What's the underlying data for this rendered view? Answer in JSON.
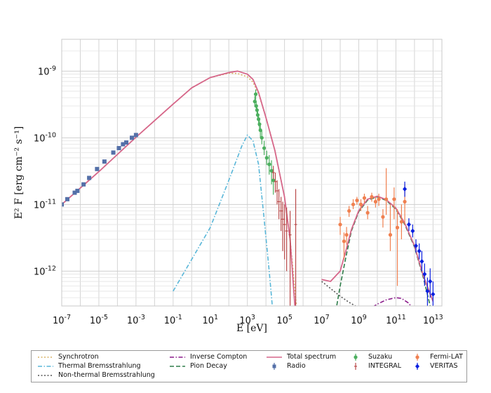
{
  "chart_data": {
    "type": "line",
    "xlabel": "E [eV]",
    "ylabel": "E² F [erg cm⁻² s⁻¹]",
    "xscale": "log",
    "yscale": "log",
    "xlim": [
      1e-07,
      30000000000000.0
    ],
    "ylim": [
      3e-13,
      3e-09
    ],
    "grid": true,
    "legend_position": "bottom",
    "x_ticks": [
      {
        "value": 1e-07,
        "base": "10",
        "exp": "-7"
      },
      {
        "value": 1e-05,
        "base": "10",
        "exp": "-5"
      },
      {
        "value": 0.001,
        "base": "10",
        "exp": "-3"
      },
      {
        "value": 0.1,
        "base": "10",
        "exp": "-1"
      },
      {
        "value": 10.0,
        "base": "10",
        "exp": "1"
      },
      {
        "value": 1000.0,
        "base": "10",
        "exp": "3"
      },
      {
        "value": 100000.0,
        "base": "10",
        "exp": "5"
      },
      {
        "value": 10000000.0,
        "base": "10",
        "exp": "7"
      },
      {
        "value": 1000000000.0,
        "base": "10",
        "exp": "9"
      },
      {
        "value": 100000000000.0,
        "base": "10",
        "exp": "11"
      },
      {
        "value": 10000000000000.0,
        "base": "10",
        "exp": "13"
      }
    ],
    "y_ticks": [
      {
        "value": 1e-12,
        "base": "10",
        "exp": "-12"
      },
      {
        "value": 1e-11,
        "base": "10",
        "exp": "-11"
      },
      {
        "value": 1e-10,
        "base": "10",
        "exp": "-10"
      },
      {
        "value": 1e-09,
        "base": "10",
        "exp": "-9"
      }
    ],
    "model_curves": [
      {
        "name": "Synchrotron",
        "color": "#d8b366",
        "style": "dotted",
        "x": [
          1e-07,
          1e-05,
          0.001,
          0.1,
          1.0,
          10.0,
          100.0,
          300.0,
          1000.0,
          2000.0,
          4000.0,
          10000.0,
          30000.0,
          100000.0,
          200000.0,
          500000.0
        ],
        "y": [
          1e-11,
          3.1e-11,
          1.02e-10,
          3.2e-10,
          5.6e-10,
          8e-10,
          9.3e-10,
          9.2e-10,
          8.2e-10,
          6.8e-10,
          4.6e-10,
          2e-10,
          6.5e-11,
          1.3e-11,
          3e-12,
          2e-13
        ]
      },
      {
        "name": "Thermal Bremsstrahlung",
        "color": "#58b6d8",
        "style": "dashdot",
        "x": [
          0.1,
          1,
          10,
          100,
          500,
          1000.0,
          2000.0,
          4000.0,
          8000.0,
          15000.0,
          25000.0
        ],
        "y": [
          5e-13,
          1.5e-12,
          4.5e-12,
          2.3e-11,
          7.5e-11,
          1.1e-10,
          9e-11,
          4e-11,
          6e-12,
          1e-12,
          2e-13
        ]
      },
      {
        "name": "Non-thermal Bremsstrahlung",
        "color": "#555555",
        "style": "dotted",
        "x": [
          10000000.0,
          30000000.0,
          100000000.0,
          300000000.0,
          1000000000.0,
          3000000000.0,
          7000000000.0
        ],
        "y": [
          7e-13,
          5.5e-13,
          4.2e-13,
          3.4e-13,
          2.8e-13,
          2.4e-13,
          2e-13
        ]
      },
      {
        "name": "Inverse Compton",
        "color": "#8a1a8a",
        "style": "dashdot",
        "x": [
          1000000000.0,
          3000000000.0,
          10000000000.0,
          30000000000.0,
          100000000000.0,
          200000000000.0,
          500000000000.0,
          1000000000000.0
        ],
        "y": [
          2e-13,
          2.6e-13,
          3.2e-13,
          3.7e-13,
          4e-13,
          3.9e-13,
          3.3e-13,
          2.5e-13
        ]
      },
      {
        "name": "Pion Decay",
        "color": "#2e7d4a",
        "style": "dashed",
        "x": [
          50000000.0,
          100000000.0,
          200000000.0,
          400000000.0,
          1000000000.0,
          3000000000.0,
          10000000000.0,
          30000000000.0,
          100000000000.0,
          300000000000.0,
          1000000000000.0,
          3000000000000.0,
          10000000000000.0
        ],
        "y": [
          2e-13,
          6e-13,
          1.6e-12,
          4e-12,
          7.8e-12,
          1.16e-11,
          1.3e-11,
          1.15e-11,
          8.5e-12,
          5e-12,
          2.3e-12,
          8e-13,
          2e-13
        ]
      },
      {
        "name": "Total spectrum",
        "color": "#d6668a",
        "style": "solid",
        "x": [
          1e-07,
          1e-05,
          0.001,
          0.1,
          1.0,
          10.0,
          100.0,
          300.0,
          1000.0,
          2000.0,
          4000.0,
          10000.0,
          30000.0,
          100000.0,
          200000.0,
          400000.0
        ],
        "y": [
          1e-11,
          3.1e-11,
          1.02e-10,
          3.2e-10,
          5.6e-10,
          8e-10,
          9.5e-10,
          1e-09,
          9e-10,
          7.5e-10,
          4.8e-10,
          2e-10,
          6.5e-11,
          1.3e-11,
          3e-12,
          2e-13
        ]
      },
      {
        "name": "Total spectrum",
        "color": "#d6668a",
        "style": "solid",
        "x": [
          10000000.0,
          30000000.0,
          100000000.0,
          200000000.0,
          400000000.0,
          1000000000.0,
          3000000000.0,
          10000000000.0,
          30000000000.0,
          100000000000.0,
          300000000000.0,
          1000000000000.0,
          3000000000000.0,
          10000000000000.0
        ],
        "y": [
          7.5e-13,
          7e-13,
          1e-12,
          2e-12,
          4.2e-12,
          8.1e-12,
          1.2e-11,
          1.33e-11,
          1.18e-11,
          8.8e-12,
          5.2e-12,
          2.4e-12,
          8.5e-13,
          3.5e-13
        ]
      }
    ],
    "data_series": [
      {
        "name": "Radio",
        "color": "#5470a8",
        "marker": "square",
        "points": [
          {
            "x": 1e-07,
            "y": 1e-11
          },
          {
            "x": 2e-07,
            "y": 1.2e-11
          },
          {
            "x": 5e-07,
            "y": 1.5e-11
          },
          {
            "x": 7e-07,
            "y": 1.6e-11
          },
          {
            "x": 1.5e-06,
            "y": 2e-11
          },
          {
            "x": 3e-06,
            "y": 2.5e-11
          },
          {
            "x": 8e-06,
            "y": 3.4e-11
          },
          {
            "x": 2e-05,
            "y": 4.4e-11
          },
          {
            "x": 6e-05,
            "y": 6e-11
          },
          {
            "x": 0.00012,
            "y": 7e-11
          },
          {
            "x": 0.0002,
            "y": 8e-11
          },
          {
            "x": 0.0003,
            "y": 8.5e-11
          },
          {
            "x": 0.0006,
            "y": 1e-10
          },
          {
            "x": 0.001,
            "y": 1.1e-10
          }
        ]
      },
      {
        "name": "Suzaku",
        "color": "#4caf5f",
        "marker": "circle",
        "points": [
          {
            "x": 2500.0,
            "y": 3.5e-10,
            "lo": 2.9e-10,
            "hi": 4.2e-10
          },
          {
            "x": 2800.0,
            "y": 4.5e-10,
            "lo": 3.7e-10,
            "hi": 5.3e-10
          },
          {
            "x": 3000.0,
            "y": 3e-10,
            "lo": 2.5e-10,
            "hi": 3.6e-10
          },
          {
            "x": 3300.0,
            "y": 2.6e-10,
            "lo": 2.2e-10,
            "hi": 3.1e-10
          },
          {
            "x": 3600.0,
            "y": 2.2e-10,
            "lo": 1.8e-10,
            "hi": 2.7e-10
          },
          {
            "x": 4000.0,
            "y": 1.9e-10,
            "lo": 1.5e-10,
            "hi": 2.3e-10
          },
          {
            "x": 4500.0,
            "y": 1.6e-10,
            "lo": 1.3e-10,
            "hi": 2e-10
          },
          {
            "x": 5000.0,
            "y": 1.3e-10,
            "lo": 1e-10,
            "hi": 1.6e-10
          },
          {
            "x": 6000.0,
            "y": 1e-10,
            "lo": 8e-11,
            "hi": 1.3e-10
          },
          {
            "x": 8000.0,
            "y": 7e-11,
            "lo": 5.5e-11,
            "hi": 9e-11
          },
          {
            "x": 11000.0,
            "y": 5e-11,
            "lo": 3.9e-11,
            "hi": 6.4e-11
          },
          {
            "x": 15000.0,
            "y": 4e-11,
            "lo": 2.8e-11,
            "hi": 5.5e-11
          },
          {
            "x": 20000.0,
            "y": 3.2e-11,
            "lo": 2e-11,
            "hi": 4.6e-11
          },
          {
            "x": 25000.0,
            "y": 2.3e-11,
            "lo": 1.4e-11,
            "hi": 3.4e-11
          }
        ]
      },
      {
        "name": "INTEGRAL",
        "color": "#b94a4a",
        "marker": "tick",
        "points": [
          {
            "x": 25000.0,
            "y": 3e-11,
            "lo": 2.4e-11,
            "hi": 3.8e-11
          },
          {
            "x": 32000.0,
            "y": 2.2e-11,
            "lo": 1.5e-11,
            "hi": 3e-11
          },
          {
            "x": 40000.0,
            "y": 1.6e-11,
            "lo": 1e-11,
            "hi": 2.3e-11
          },
          {
            "x": 50000.0,
            "y": 1.1e-11,
            "lo": 6e-12,
            "hi": 1.7e-11
          },
          {
            "x": 65000.0,
            "y": 8e-12,
            "lo": 4e-12,
            "hi": 1.3e-11
          },
          {
            "x": 80000.0,
            "y": 6e-12,
            "lo": 2e-12,
            "hi": 1.1e-11
          },
          {
            "x": 100000.0,
            "y": 5e-12,
            "lo": 1.5e-12,
            "hi": 1e-11
          },
          {
            "x": 130000.0,
            "y": 4e-12,
            "lo": 1e-12,
            "hi": 9e-12
          },
          {
            "x": 200000.0,
            "y": 3.5e-12,
            "lo": 3e-13,
            "hi": 8e-12
          },
          {
            "x": 400000.0,
            "y": 5e-12,
            "lo": 3e-13,
            "hi": 1.7e-11
          }
        ]
      },
      {
        "name": "Fermi-LAT",
        "color": "#f08050",
        "marker": "circle",
        "points": [
          {
            "x": 100000000.0,
            "y": 5e-12,
            "lo": 3.5e-12,
            "hi": 6.5e-12
          },
          {
            "x": 160000000.0,
            "y": 2.8e-12,
            "lo": 1.5e-12,
            "hi": 3.8e-12
          },
          {
            "x": 220000000.0,
            "y": 3.5e-12,
            "lo": 2.5e-12,
            "hi": 4.6e-12
          },
          {
            "x": 300000000.0,
            "y": 8e-12,
            "lo": 6.5e-12,
            "hi": 9.5e-12
          },
          {
            "x": 500000000.0,
            "y": 1e-11,
            "lo": 8.5e-12,
            "hi": 1.2e-11
          },
          {
            "x": 800000000.0,
            "y": 1.15e-11,
            "lo": 1e-11,
            "hi": 1.3e-11
          },
          {
            "x": 1300000000.0,
            "y": 1e-11,
            "lo": 8e-12,
            "hi": 1.2e-11
          },
          {
            "x": 2000000000.0,
            "y": 1.25e-11,
            "lo": 1.05e-11,
            "hi": 1.45e-11
          },
          {
            "x": 3000000000.0,
            "y": 7.5e-12,
            "lo": 6e-12,
            "hi": 9.5e-12
          },
          {
            "x": 5000000000.0,
            "y": 1.3e-11,
            "lo": 1.1e-11,
            "hi": 1.5e-11
          },
          {
            "x": 8000000000.0,
            "y": 1.1e-11,
            "lo": 9e-12,
            "hi": 1.3e-11
          },
          {
            "x": 12000000000.0,
            "y": 1.2e-11,
            "lo": 9.5e-12,
            "hi": 1.45e-11
          },
          {
            "x": 20000000000.0,
            "y": 6.5e-12,
            "lo": 4.5e-12,
            "hi": 8.5e-12
          },
          {
            "x": 30000000000.0,
            "y": 1.2e-11,
            "lo": 7e-12,
            "hi": 3.5e-11
          },
          {
            "x": 50000000000.0,
            "y": 3.5e-12,
            "lo": 2e-12,
            "hi": 1e-11
          },
          {
            "x": 80000000000.0,
            "y": 1.2e-11,
            "lo": 6e-12,
            "hi": 1.8e-11
          },
          {
            "x": 120000000000.0,
            "y": 4.5e-12,
            "lo": 6e-13,
            "hi": 8.5e-12
          },
          {
            "x": 200000000000.0,
            "y": 5.5e-12,
            "lo": 3e-12,
            "hi": 1e-11
          },
          {
            "x": 300000000000.0,
            "y": 1.1e-11,
            "lo": 5e-12,
            "hi": 2e-11
          }
        ]
      },
      {
        "name": "VERITAS",
        "color": "#0a1fe0",
        "marker": "diamond",
        "points": [
          {
            "x": 300000000000.0,
            "y": 1.7e-11,
            "lo": 1.3e-11,
            "hi": 2.2e-11
          },
          {
            "x": 500000000000.0,
            "y": 5e-12,
            "lo": 4e-12,
            "hi": 6.2e-12
          },
          {
            "x": 800000000000.0,
            "y": 4e-12,
            "lo": 3.2e-12,
            "hi": 5e-12
          },
          {
            "x": 1200000000000.0,
            "y": 2.4e-12,
            "lo": 1.9e-12,
            "hi": 3e-12
          },
          {
            "x": 1800000000000.0,
            "y": 2e-12,
            "lo": 1.5e-12,
            "hi": 2.6e-12
          },
          {
            "x": 2500000000000.0,
            "y": 1.4e-12,
            "lo": 1e-12,
            "hi": 2e-12
          },
          {
            "x": 3500000000000.0,
            "y": 9e-13,
            "lo": 6e-13,
            "hi": 1.3e-12
          },
          {
            "x": 5000000000000.0,
            "y": 5e-13,
            "lo": 3e-13,
            "hi": 8e-13
          },
          {
            "x": 7000000000000.0,
            "y": 7e-13,
            "lo": 4e-13,
            "hi": 1.1e-12
          },
          {
            "x": 10000000000000.0,
            "y": 4.5e-13,
            "lo": 3e-13,
            "hi": 7e-13
          }
        ]
      }
    ],
    "legend": {
      "entries": [
        {
          "label": "Synchrotron",
          "kind": "line",
          "color": "#d8b366",
          "style": "dotted"
        },
        {
          "label": "Thermal Bremsstrahlung",
          "kind": "line",
          "color": "#58b6d8",
          "style": "dashdot"
        },
        {
          "label": "Non-thermal Bremsstrahlung",
          "kind": "line",
          "color": "#555555",
          "style": "dotted"
        },
        {
          "label": "Inverse Compton",
          "kind": "line",
          "color": "#8a1a8a",
          "style": "dashdot"
        },
        {
          "label": "Pion Decay",
          "kind": "line",
          "color": "#2e7d4a",
          "style": "dashed"
        },
        {
          "label": "Total spectrum",
          "kind": "line",
          "color": "#d6668a",
          "style": "solid"
        },
        {
          "label": "Radio",
          "kind": "marker",
          "color": "#5470a8",
          "marker": "square"
        },
        {
          "label": "Suzaku",
          "kind": "marker",
          "color": "#4caf5f",
          "marker": "circle"
        },
        {
          "label": "INTEGRAL",
          "kind": "marker",
          "color": "#b94a4a",
          "marker": "tick"
        },
        {
          "label": "Fermi-LAT",
          "kind": "marker",
          "color": "#f08050",
          "marker": "circle"
        },
        {
          "label": "VERITAS",
          "kind": "marker",
          "color": "#0a1fe0",
          "marker": "diamond"
        }
      ]
    }
  }
}
